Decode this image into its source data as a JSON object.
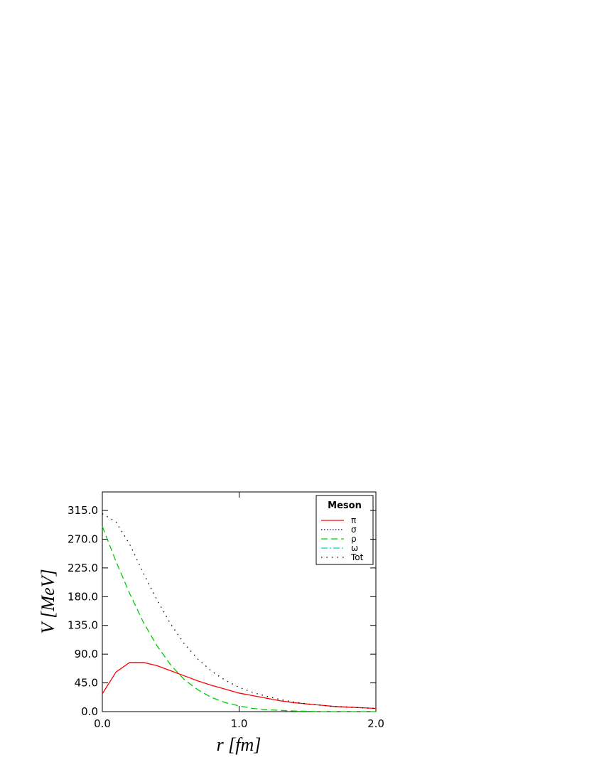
{
  "chart_data": {
    "type": "line",
    "xlabel": "r [fm]",
    "ylabel": "V [MeV]",
    "legend_title": "Meson",
    "legend": "upper right",
    "x": [
      0.0,
      0.1,
      0.2,
      0.3,
      0.4,
      0.5,
      0.6,
      0.7,
      0.8,
      0.9,
      1.0,
      1.1,
      1.2,
      1.3,
      1.4,
      1.5,
      1.6,
      1.7,
      1.8,
      1.9,
      2.0
    ],
    "series": [
      {
        "name": "π",
        "color": "#ff0000",
        "style": "solid",
        "values": [
          28,
          62,
          77,
          77,
          72,
          64,
          56,
          48,
          41,
          35,
          29,
          25,
          21,
          17,
          14,
          12,
          10,
          8,
          7,
          6,
          5
        ]
      },
      {
        "name": "σ",
        "color": "#00008b",
        "style": "dotted",
        "values": [
          null,
          null,
          null,
          null,
          null,
          null,
          null,
          null,
          null,
          null,
          null,
          null,
          null,
          null,
          null,
          null,
          null,
          null,
          null,
          null,
          null
        ]
      },
      {
        "name": "ρ",
        "color": "#00cc00",
        "style": "dashed",
        "values": [
          290,
          235,
          185,
          140,
          103,
          73,
          50,
          34,
          22,
          14,
          9,
          5,
          3,
          2,
          1,
          0.5,
          0,
          0,
          0,
          0,
          0
        ]
      },
      {
        "name": "ω",
        "color": "#00cccc",
        "style": "dashdot",
        "values": [
          null,
          null,
          null,
          null,
          null,
          null,
          null,
          null,
          null,
          null,
          null,
          null,
          null,
          null,
          null,
          null,
          null,
          null,
          null,
          null,
          null
        ]
      },
      {
        "name": "Tot",
        "color": "#000000",
        "style": "sparse",
        "values": [
          310,
          297,
          262,
          217,
          175,
          137,
          106,
          82,
          63,
          49,
          38,
          30,
          24,
          19,
          15,
          12,
          10,
          8,
          7,
          6,
          5
        ]
      }
    ],
    "xlim": [
      0,
      2
    ],
    "xticks": [
      {
        "value": 0,
        "label": "0.0"
      },
      {
        "value": 1,
        "label": "1.0"
      },
      {
        "value": 2,
        "label": "2.0"
      }
    ],
    "ylim": [
      0,
      344
    ],
    "yticks": [
      {
        "value": 0,
        "label": "0.0"
      },
      {
        "value": 45,
        "label": "45.0"
      },
      {
        "value": 90,
        "label": "90.0"
      },
      {
        "value": 135,
        "label": "135.0"
      },
      {
        "value": 180,
        "label": "180.0"
      },
      {
        "value": 225,
        "label": "225.0"
      },
      {
        "value": 270,
        "label": "270.0"
      },
      {
        "value": 315,
        "label": "315.0"
      }
    ]
  }
}
